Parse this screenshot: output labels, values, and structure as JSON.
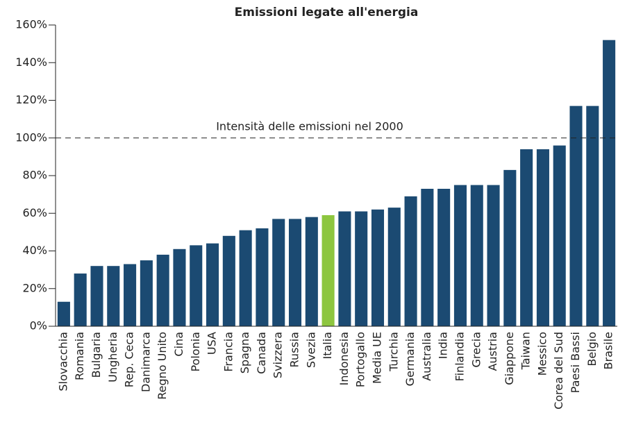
{
  "chart_data": {
    "type": "bar",
    "title": "Emissioni legate all'energia",
    "categories": [
      "Slovacchia",
      "Romania",
      "Bulgaria",
      "Ungheria",
      "Rep. Ceca",
      "Danimarca",
      "Regno Unito",
      "Cina",
      "Polonia",
      "USA",
      "Francia",
      "Spagna",
      "Canada",
      "Svizzera",
      "Russia",
      "Svezia",
      "Italia",
      "Indonesia",
      "Portogallo",
      "Media UE",
      "Turchia",
      "Germania",
      "Australia",
      "India",
      "Finlandia",
      "Grecia",
      "Austria",
      "Giappone",
      "Taiwan",
      "Messico",
      "Corea del Sud",
      "Paesi Bassi",
      "Belgio",
      "Brasile"
    ],
    "values": [
      13,
      28,
      32,
      32,
      33,
      35,
      38,
      41,
      43,
      44,
      48,
      51,
      52,
      57,
      57,
      58,
      59,
      61,
      61,
      62,
      63,
      69,
      73,
      73,
      75,
      75,
      75,
      83,
      94,
      94,
      96,
      117,
      117,
      152
    ],
    "colors": [
      "#1b4a72",
      "#1b4a72",
      "#1b4a72",
      "#1b4a72",
      "#1b4a72",
      "#1b4a72",
      "#1b4a72",
      "#1b4a72",
      "#1b4a72",
      "#1b4a72",
      "#1b4a72",
      "#1b4a72",
      "#1b4a72",
      "#1b4a72",
      "#1b4a72",
      "#1b4a72",
      "#8dc63f",
      "#1b4a72",
      "#1b4a72",
      "#1b4a72",
      "#1b4a72",
      "#1b4a72",
      "#1b4a72",
      "#1b4a72",
      "#1b4a72",
      "#1b4a72",
      "#1b4a72",
      "#1b4a72",
      "#1b4a72",
      "#1b4a72",
      "#1b4a72",
      "#1b4a72",
      "#1b4a72",
      "#1b4a72"
    ],
    "ylim": [
      0,
      160
    ],
    "yticks": [
      {
        "value": 0,
        "label": "0%"
      },
      {
        "value": 20,
        "label": "20%"
      },
      {
        "value": 40,
        "label": "40%"
      },
      {
        "value": 60,
        "label": "60%"
      },
      {
        "value": 80,
        "label": "80%"
      },
      {
        "value": 100,
        "label": "100%"
      },
      {
        "value": 120,
        "label": "120%"
      },
      {
        "value": 140,
        "label": "140%"
      },
      {
        "value": 160,
        "label": "160%"
      }
    ],
    "reference_line": {
      "value": 100,
      "label": "Intensità delle emissioni nel 2000"
    }
  }
}
